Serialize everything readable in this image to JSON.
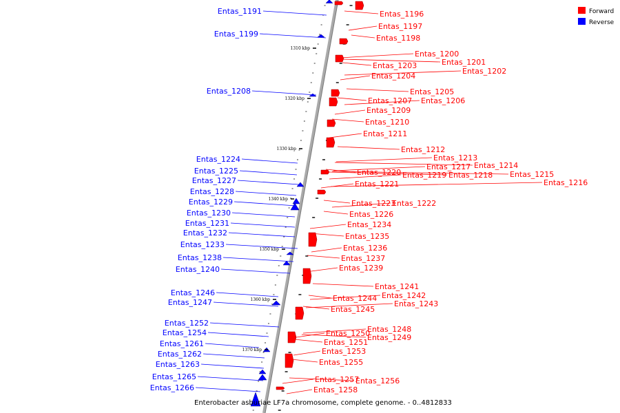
{
  "legend": {
    "forward_label": "Forward",
    "reverse_label": "Reverse",
    "forward_color": "#ff0000",
    "reverse_color": "#0000ff"
  },
  "caption": "Enterobacter asburiae LF7a chromosome, complete genome. - 0..4812833",
  "scale_ticks": [
    "1310 kbp",
    "1320 kbp",
    "1330 kbp",
    "1340 kbp",
    "1350 kbp",
    "1360 kbp",
    "1370 kbp"
  ],
  "forward_genes": [
    "Entas_1196",
    "Entas_1197",
    "Entas_1198",
    "Entas_1200",
    "Entas_1201",
    "Entas_1202",
    "Entas_1203",
    "Entas_1204",
    "Entas_1205",
    "Entas_1206",
    "Entas_1207",
    "Entas_1209",
    "Entas_1210",
    "Entas_1211",
    "Entas_1212",
    "Entas_1213",
    "Entas_1214",
    "Entas_1217",
    "Entas_1215",
    "Entas_1216",
    "Entas_1218",
    "Entas_1219",
    "Entas_1220",
    "Entas_1221",
    "Entas_1223",
    "Entas_1222",
    "Entas_1226",
    "Entas_1234",
    "Entas_1235",
    "Entas_1236",
    "Entas_1237",
    "Entas_1239",
    "Entas_1241",
    "Entas_1242",
    "Entas_1244",
    "Entas_1243",
    "Entas_1245",
    "Entas_1248",
    "Entas_1249",
    "Entas_1250",
    "Entas_1251",
    "Entas_1253",
    "Entas_1255",
    "Entas_1257",
    "Entas_1256",
    "Entas_1258"
  ],
  "reverse_genes": [
    "Entas_1191",
    "Entas_1199",
    "Entas_1208",
    "Entas_1224",
    "Entas_1225",
    "Entas_1227",
    "Entas_1228",
    "Entas_1229",
    "Entas_1230",
    "Entas_1231",
    "Entas_1232",
    "Entas_1233",
    "Entas_1238",
    "Entas_1240",
    "Entas_1246",
    "Entas_1247",
    "Entas_1252",
    "Entas_1254",
    "Entas_1261",
    "Entas_1262",
    "Entas_1263",
    "Entas_1265",
    "Entas_1266"
  ]
}
